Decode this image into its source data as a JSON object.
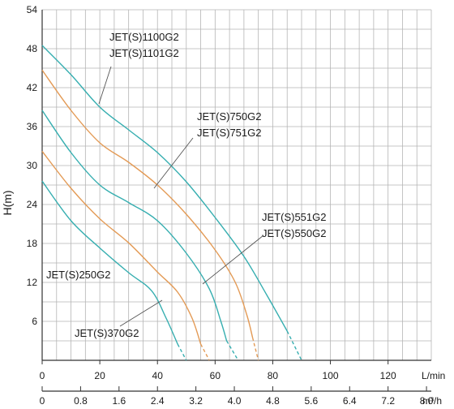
{
  "chart_data": {
    "type": "line",
    "title": "",
    "ylabel": "H(m)",
    "xlabel": "",
    "x_unit": "L/min",
    "x2_unit": "m³/h",
    "ylim": [
      0,
      54
    ],
    "xlim": [
      0,
      135
    ],
    "yticks": [
      "0",
      "6",
      "12",
      "18",
      "24",
      "30",
      "36",
      "42",
      "48",
      "54"
    ],
    "xticks": [
      "0",
      "20",
      "40",
      "60",
      "80",
      "100",
      "120"
    ],
    "x2ticks": [
      "0",
      "0.8",
      "1.6",
      "2.4",
      "3.2",
      "4.0",
      "4.8",
      "5.6",
      "6.4",
      "7.2",
      "8.0"
    ],
    "grid": true,
    "colors": {
      "teal": "#36aeb0",
      "orange": "#e39a55",
      "grid": "#b5b5b5",
      "axis": "#333333"
    },
    "series": [
      {
        "color": "teal",
        "points": [
          [
            0,
            27.6
          ],
          [
            10,
            21.5
          ],
          [
            20,
            17.3
          ],
          [
            30,
            13.5
          ],
          [
            38,
            10.7
          ],
          [
            43,
            6.5
          ],
          [
            47,
            2.5
          ]
        ],
        "dashed": [
          [
            47,
            2.5
          ],
          [
            50,
            0
          ]
        ]
      },
      {
        "color": "orange",
        "points": [
          [
            0,
            32.2
          ],
          [
            10,
            26.5
          ],
          [
            20,
            21.8
          ],
          [
            30,
            18.1
          ],
          [
            40,
            13.6
          ],
          [
            47,
            10.5
          ],
          [
            52,
            6.5
          ],
          [
            55,
            2.5
          ]
        ],
        "dashed": [
          [
            55,
            2.5
          ],
          [
            58,
            0
          ]
        ]
      },
      {
        "color": "teal",
        "points": [
          [
            0,
            38.5
          ],
          [
            10,
            32.0
          ],
          [
            20,
            27.0
          ],
          [
            30,
            24.3
          ],
          [
            40,
            21.5
          ],
          [
            50,
            16.5
          ],
          [
            58,
            11.0
          ],
          [
            62,
            6.0
          ],
          [
            64,
            3.0
          ]
        ],
        "dashed": [
          [
            64,
            3.0
          ],
          [
            68,
            0
          ]
        ]
      },
      {
        "color": "orange",
        "points": [
          [
            0,
            44.7
          ],
          [
            10,
            38.5
          ],
          [
            20,
            33.5
          ],
          [
            30,
            30.5
          ],
          [
            40,
            27.0
          ],
          [
            50,
            22.5
          ],
          [
            60,
            17.0
          ],
          [
            67,
            12.0
          ],
          [
            71,
            7.0
          ],
          [
            73,
            3.5
          ]
        ],
        "dashed": [
          [
            73,
            3.5
          ],
          [
            75,
            0
          ]
        ]
      },
      {
        "color": "teal",
        "points": [
          [
            0,
            48.5
          ],
          [
            10,
            44.0
          ],
          [
            20,
            39.0
          ],
          [
            30,
            35.5
          ],
          [
            40,
            32.0
          ],
          [
            50,
            27.5
          ],
          [
            60,
            22.0
          ],
          [
            70,
            16.0
          ],
          [
            78,
            10.0
          ],
          [
            85,
            4.5
          ]
        ],
        "dashed": [
          [
            85,
            4.5
          ],
          [
            90,
            0
          ]
        ]
      }
    ],
    "labels": [
      {
        "text": "JET(S)1100G2",
        "lines": [
          "JET(S)1100G2",
          "JET(S)1101G2"
        ]
      },
      {
        "text": "JET(S)750G2",
        "lines": [
          "JET(S)750G2",
          "JET(S)751G2"
        ]
      },
      {
        "text": "JET(S)551G2",
        "lines": [
          "JET(S)551G2",
          "JET(S)550G2"
        ]
      },
      {
        "text": "JET(S)250G2",
        "lines": [
          "JET(S)250G2"
        ]
      },
      {
        "text": "JET(S)370G2",
        "lines": [
          "JET(S)370G2"
        ]
      }
    ]
  }
}
